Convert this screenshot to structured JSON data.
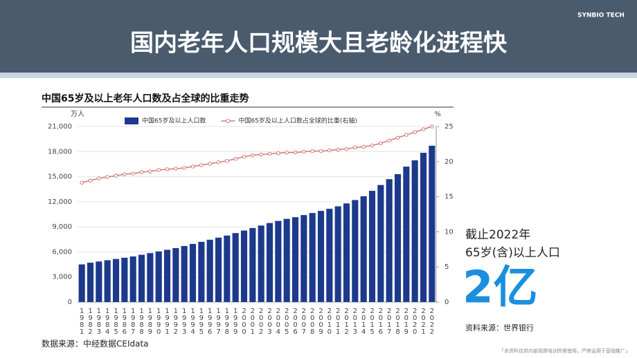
{
  "header": {
    "title": "国内老年人口规模大且老龄化进程快",
    "logo": "SYNBIO TECH"
  },
  "side": {
    "line1": "截止2022年",
    "line2": "65岁(含)以上人口",
    "big": "2亿",
    "source": "资料来源：世界银行"
  },
  "footer": {
    "source": "数据来源：中经数据CEIdata",
    "disclaimer": "「本资料仅供内部观摩培训所需使用，严禁运用于营销推广」"
  },
  "chart_data": {
    "type": "bar",
    "title": "中国65岁及以上老年人口数及占全球的比重走势",
    "ylabel": "万人",
    "y2label": "%",
    "categories": [
      "1981",
      "1982",
      "1983",
      "1984",
      "1985",
      "1986",
      "1987",
      "1988",
      "1989",
      "1990",
      "1991",
      "1992",
      "1993",
      "1994",
      "1995",
      "1996",
      "1997",
      "1998",
      "1999",
      "2000",
      "2001",
      "2002",
      "2003",
      "2004",
      "2005",
      "2006",
      "2007",
      "2008",
      "2009",
      "2010",
      "2011",
      "2012",
      "2013",
      "2014",
      "2015",
      "2016",
      "2017",
      "2018",
      "2019",
      "2020",
      "2021",
      "2022"
    ],
    "series": [
      {
        "name": "中国65岁及以上人口数",
        "type": "bar",
        "axis": "y",
        "color": "#1c3a8c",
        "values": [
          4500,
          4700,
          4850,
          5000,
          5150,
          5300,
          5450,
          5650,
          5850,
          6050,
          6250,
          6450,
          6700,
          6950,
          7200,
          7450,
          7700,
          7950,
          8250,
          8550,
          8850,
          9150,
          9450,
          9700,
          9950,
          10150,
          10400,
          10650,
          10900,
          11150,
          11450,
          11800,
          12200,
          12650,
          13300,
          14000,
          14700,
          15300,
          16200,
          16950,
          17850,
          18700
        ]
      },
      {
        "name": "中国65岁及以上人口数占全球的比重(右轴)",
        "type": "line",
        "axis": "y2",
        "color": "#d07878",
        "values": [
          17,
          17.3,
          17.6,
          17.8,
          18,
          18.2,
          18.3,
          18.5,
          18.6,
          18.8,
          18.9,
          19,
          19.1,
          19.3,
          19.5,
          19.7,
          19.9,
          20.1,
          20.4,
          20.7,
          20.9,
          21,
          21.1,
          21.2,
          21.3,
          21.3,
          21.4,
          21.5,
          21.5,
          21.6,
          21.7,
          21.8,
          22,
          22.1,
          22.3,
          22.6,
          23,
          23.4,
          23.8,
          24.2,
          24.6,
          25
        ]
      }
    ],
    "ylim": [
      0,
      21000
    ],
    "yticks": [
      0,
      {
        "value": 3000,
        "label": "3,000"
      },
      {
        "value": 6000,
        "label": "6,000"
      },
      {
        "value": 9000,
        "label": "9,000"
      },
      {
        "value": 12000,
        "label": "12,000"
      },
      {
        "value": 15000,
        "label": "15,000"
      },
      {
        "value": 18000,
        "label": "18,000"
      },
      {
        "value": 21000,
        "label": "21,000"
      }
    ],
    "y2lim": [
      0,
      25
    ],
    "y2ticks": [
      0,
      5,
      10,
      15,
      20,
      25
    ],
    "grid": true,
    "legend": "top"
  }
}
